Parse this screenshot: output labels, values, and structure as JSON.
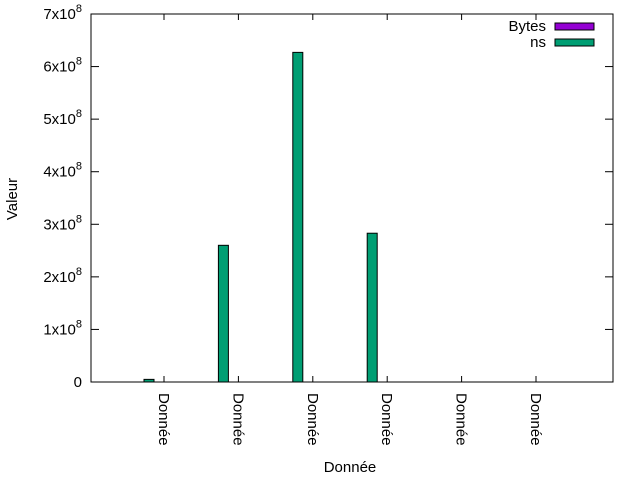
{
  "chart_data": {
    "type": "bar",
    "xlabel": "Donnée",
    "ylabel": "Valeur",
    "ylim": [
      0,
      700000000
    ],
    "y_ticks": [
      {
        "value": 0,
        "base": "0",
        "exp": ""
      },
      {
        "value": 100000000,
        "base": "1x10",
        "exp": "8"
      },
      {
        "value": 200000000,
        "base": "2x10",
        "exp": "8"
      },
      {
        "value": 300000000,
        "base": "3x10",
        "exp": "8"
      },
      {
        "value": 400000000,
        "base": "4x10",
        "exp": "8"
      },
      {
        "value": 500000000,
        "base": "5x10",
        "exp": "8"
      },
      {
        "value": 600000000,
        "base": "6x10",
        "exp": "8"
      },
      {
        "value": 700000000,
        "base": "7x10",
        "exp": "8"
      }
    ],
    "categories": [
      "Donnée",
      "Donnée",
      "Donnée",
      "Donnée",
      "Donnée",
      "Donnée"
    ],
    "series": [
      {
        "name": "Bytes",
        "color": "#9400d3",
        "values": [
          0,
          0,
          0,
          0,
          0,
          0
        ]
      },
      {
        "name": "ns",
        "color": "#009e73",
        "values": [
          5000000,
          260000000,
          627000000,
          283000000,
          0,
          0
        ]
      }
    ],
    "legend_position": "top-right",
    "grid": false
  }
}
